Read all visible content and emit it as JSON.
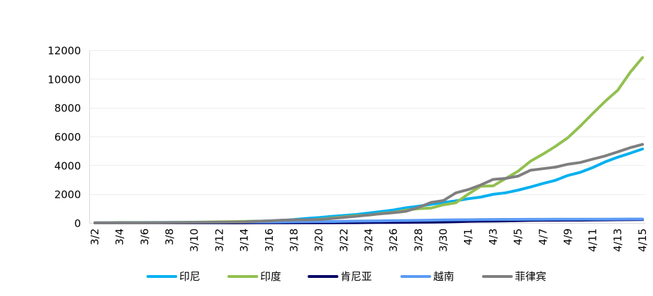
{
  "chart_data": {
    "type": "line",
    "x": [
      "3/2",
      "3/3",
      "3/4",
      "3/5",
      "3/6",
      "3/7",
      "3/8",
      "3/9",
      "3/10",
      "3/11",
      "3/12",
      "3/13",
      "3/14",
      "3/15",
      "3/16",
      "3/17",
      "3/18",
      "3/19",
      "3/20",
      "3/21",
      "3/22",
      "3/23",
      "3/24",
      "3/25",
      "3/26",
      "3/27",
      "3/28",
      "3/29",
      "3/30",
      "3/31",
      "4/1",
      "4/2",
      "4/3",
      "4/4",
      "4/5",
      "4/6",
      "4/7",
      "4/8",
      "4/9",
      "4/10",
      "4/11",
      "4/12",
      "4/13",
      "4/14",
      "4/15"
    ],
    "x_tick_labels": [
      "3/2",
      "3/4",
      "3/6",
      "3/8",
      "3/10",
      "3/12",
      "3/14",
      "3/16",
      "3/18",
      "3/20",
      "3/22",
      "3/24",
      "3/26",
      "3/28",
      "3/30",
      "4/1",
      "4/3",
      "4/5",
      "4/7",
      "4/9",
      "4/11",
      "4/13",
      "4/15"
    ],
    "ylim": [
      0,
      12000
    ],
    "y_ticks": [
      0,
      2000,
      4000,
      6000,
      8000,
      10000,
      12000
    ],
    "grid": "horizontal",
    "legend_position": "bottom",
    "series": [
      {
        "name": "印尼",
        "color": "#00b0f0",
        "values": [
          2,
          2,
          2,
          2,
          4,
          4,
          6,
          19,
          27,
          34,
          34,
          69,
          96,
          117,
          134,
          172,
          227,
          309,
          369,
          450,
          514,
          579,
          686,
          790,
          893,
          1046,
          1155,
          1285,
          1414,
          1528,
          1677,
          1790,
          1986,
          2092,
          2273,
          2491,
          2738,
          2956,
          3293,
          3512,
          3842,
          4241,
          4557,
          4839,
          5136
        ]
      },
      {
        "name": "印度",
        "color": "#92c050",
        "values": [
          5,
          6,
          28,
          30,
          31,
          34,
          39,
          43,
          50,
          60,
          74,
          82,
          100,
          114,
          129,
          143,
          169,
          194,
          249,
          332,
          415,
          499,
          536,
          657,
          727,
          887,
          987,
          1024,
          1251,
          1397,
          1998,
          2543,
          2567,
          3082,
          3588,
          4281,
          4778,
          5311,
          5916,
          6725,
          7598,
          8446,
          9205,
          10453,
          11487
        ]
      },
      {
        "name": "肯尼亚",
        "color": "#000066",
        "values": [
          0,
          0,
          0,
          0,
          0,
          0,
          0,
          0,
          0,
          0,
          0,
          1,
          1,
          3,
          3,
          3,
          4,
          7,
          7,
          7,
          15,
          16,
          25,
          28,
          31,
          38,
          42,
          50,
          59,
          81,
          110,
          122,
          126,
          142,
          158,
          172,
          179,
          184,
          189,
          191,
          197,
          208,
          216,
          225,
          234
        ]
      },
      {
        "name": "越南",
        "color": "#5b9bf5",
        "values": [
          16,
          16,
          16,
          16,
          17,
          21,
          30,
          31,
          34,
          38,
          39,
          47,
          53,
          57,
          61,
          66,
          75,
          85,
          91,
          94,
          113,
          123,
          134,
          141,
          153,
          163,
          174,
          188,
          203,
          212,
          218,
          233,
          237,
          240,
          241,
          245,
          249,
          251,
          251,
          255,
          257,
          258,
          262,
          265,
          267
        ]
      },
      {
        "name": "菲律宾",
        "color": "#7f7f7f",
        "values": [
          3,
          3,
          3,
          3,
          5,
          6,
          10,
          20,
          24,
          33,
          49,
          52,
          64,
          111,
          140,
          187,
          202,
          217,
          230,
          307,
          380,
          462,
          552,
          636,
          707,
          803,
          1075,
          1418,
          1546,
          2084,
          2311,
          2633,
          3018,
          3094,
          3246,
          3660,
          3764,
          3870,
          4076,
          4195,
          4428,
          4648,
          4932,
          5223,
          5453
        ]
      }
    ]
  }
}
